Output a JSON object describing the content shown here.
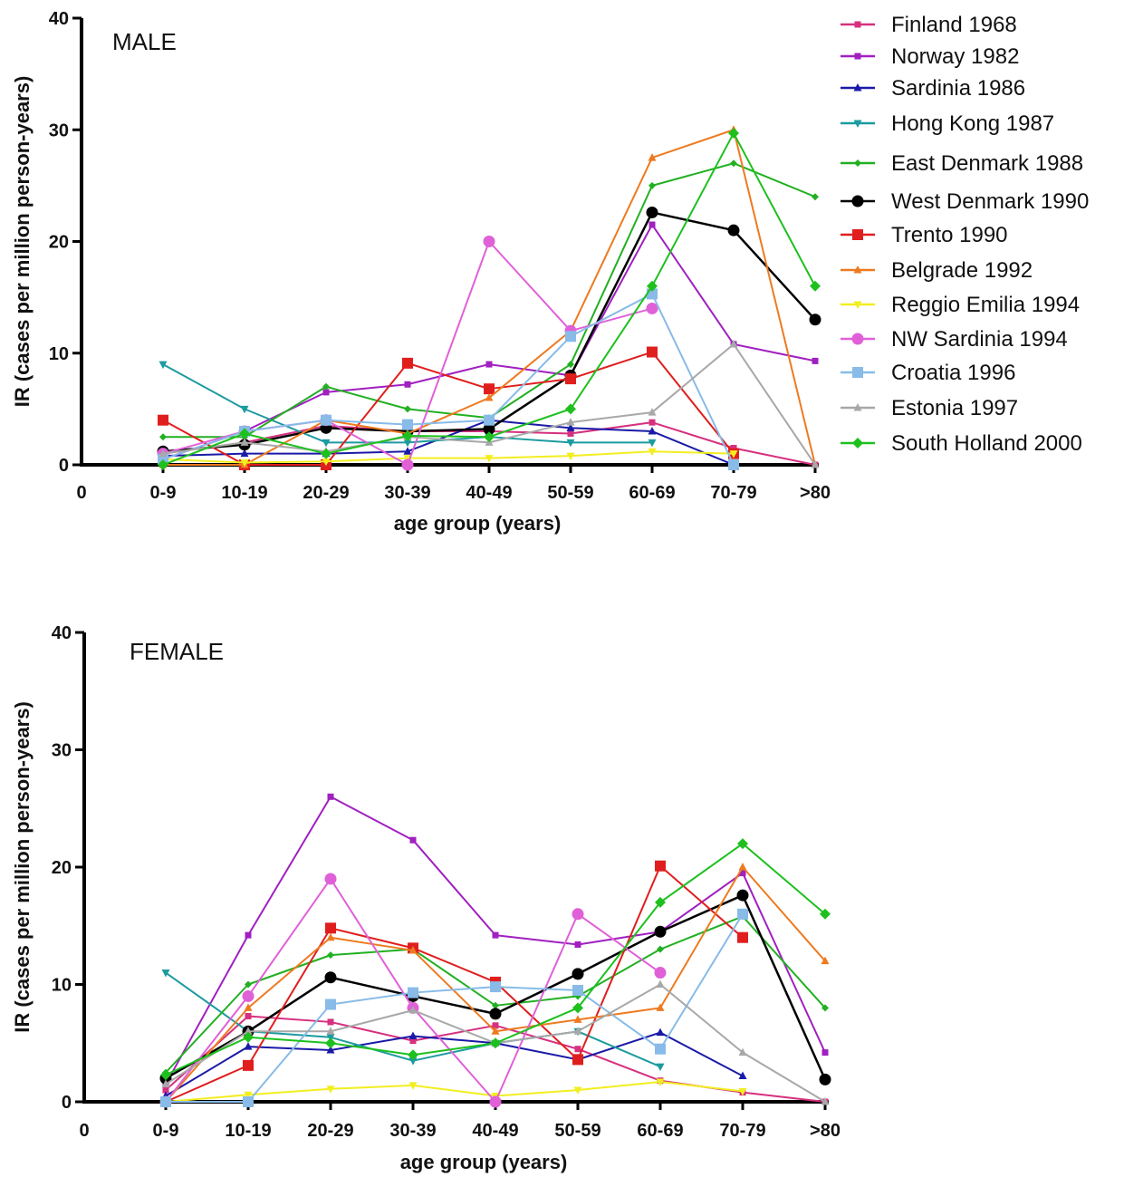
{
  "chart_data": [
    {
      "type": "line",
      "panel_label": "MALE",
      "categories": [
        "0-9",
        "10-19",
        "20-29",
        "30-39",
        "40-49",
        "50-59",
        "60-69",
        "70-79",
        ">80"
      ],
      "origin_label": "0",
      "xlabel": "age group (years)",
      "ylabel": "IR (cases per million person-years)",
      "ylim": [
        0,
        40
      ],
      "yticks": [
        0,
        10,
        20,
        30,
        40
      ],
      "grid": false,
      "legend": "right",
      "series": [
        {
          "name": "Finland 1968",
          "color": "#d6307e",
          "marker": "square-small",
          "values": [
            1.0,
            2.0,
            3.5,
            3.0,
            3.0,
            2.8,
            3.8,
            1.5,
            0
          ]
        },
        {
          "name": "Norway 1982",
          "color": "#a020c0",
          "marker": "square-small",
          "values": [
            0.5,
            3.0,
            6.5,
            7.2,
            9.0,
            8.0,
            21.5,
            10.8,
            9.3
          ]
        },
        {
          "name": "Sardinia 1986",
          "color": "#1a1aa8",
          "marker": "triangle",
          "values": [
            0.8,
            1.0,
            1.0,
            1.2,
            4.0,
            3.3,
            3.0,
            0,
            null
          ]
        },
        {
          "name": "Hong Kong 1987",
          "color": "#1c9ba0",
          "marker": "triangle-down",
          "values": [
            9.0,
            5.0,
            2.0,
            2.0,
            2.5,
            2.0,
            2.0,
            null,
            null
          ]
        },
        {
          "name": "East Denmark 1988",
          "color": "#22b022",
          "marker": "diamond-small",
          "values": [
            2.5,
            2.5,
            7.0,
            5.0,
            4.2,
            9.0,
            25.0,
            27.0,
            24.0
          ]
        },
        {
          "name": "West Denmark 1990",
          "color": "#000000",
          "marker": "circle",
          "values": [
            1.2,
            1.8,
            3.3,
            3.0,
            3.2,
            8.0,
            22.6,
            21.0,
            13.0
          ]
        },
        {
          "name": "Trento 1990",
          "color": "#e01e1e",
          "marker": "square",
          "values": [
            4.0,
            0,
            0,
            9.1,
            6.8,
            7.7,
            10.1,
            1.0,
            null
          ]
        },
        {
          "name": "Belgrade 1992",
          "color": "#ee7a20",
          "marker": "triangle",
          "values": [
            0,
            0,
            4.0,
            2.8,
            6.0,
            12.0,
            27.5,
            30.0,
            0
          ]
        },
        {
          "name": "Reggio Emilia 1994",
          "color": "#f2ee20",
          "marker": "triangle-down",
          "values": [
            0.5,
            0.2,
            0.3,
            0.6,
            0.6,
            0.8,
            1.2,
            1.0,
            null
          ]
        },
        {
          "name": "NW Sardinia 1994",
          "color": "#e060d8",
          "marker": "circle",
          "values": [
            1.0,
            3.0,
            4.0,
            0,
            20.0,
            12.0,
            14.0,
            null,
            null
          ]
        },
        {
          "name": "Croatia 1996",
          "color": "#88bbe8",
          "marker": "square",
          "values": [
            0.5,
            3.0,
            4.0,
            3.6,
            4.0,
            11.5,
            15.3,
            0,
            null
          ]
        },
        {
          "name": "Estonia 1997",
          "color": "#a8a8a8",
          "marker": "triangle",
          "values": [
            1.0,
            2.0,
            1.2,
            2.5,
            2.0,
            3.8,
            4.7,
            10.8,
            0
          ]
        },
        {
          "name": "South Holland 2000",
          "color": "#1ec01e",
          "marker": "diamond",
          "values": [
            0,
            2.8,
            1.0,
            2.6,
            2.5,
            5.0,
            16.0,
            29.7,
            16.0
          ]
        }
      ]
    },
    {
      "type": "line",
      "panel_label": "FEMALE",
      "categories": [
        "0-9",
        "10-19",
        "20-29",
        "30-39",
        "40-49",
        "50-59",
        "60-69",
        "70-79",
        ">80"
      ],
      "origin_label": "0",
      "xlabel": "age group (years)",
      "ylabel": "IR (cases per million person-years)",
      "ylim": [
        0,
        40
      ],
      "yticks": [
        0,
        10,
        20,
        30,
        40
      ],
      "grid": false,
      "series": [
        {
          "name": "Finland 1968",
          "color": "#d6307e",
          "marker": "square-small",
          "values": [
            1.0,
            7.3,
            6.8,
            5.2,
            6.5,
            4.5,
            1.8,
            0.8,
            0
          ]
        },
        {
          "name": "Norway 1982",
          "color": "#a020c0",
          "marker": "square-small",
          "values": [
            1.5,
            14.2,
            26.0,
            22.3,
            14.2,
            13.4,
            14.5,
            19.5,
            4.2
          ]
        },
        {
          "name": "Sardinia 1986",
          "color": "#1a1aa8",
          "marker": "triangle",
          "values": [
            0.5,
            4.7,
            4.4,
            5.6,
            5.0,
            3.6,
            5.9,
            2.2,
            null
          ]
        },
        {
          "name": "Hong Kong 1987",
          "color": "#1c9ba0",
          "marker": "triangle-down",
          "values": [
            11.0,
            6.0,
            5.5,
            3.5,
            5.0,
            6.0,
            3.0,
            null,
            null
          ]
        },
        {
          "name": "East Denmark 1988",
          "color": "#22b022",
          "marker": "diamond-small",
          "values": [
            2.5,
            10.0,
            12.5,
            13.0,
            8.2,
            9.0,
            13.0,
            15.8,
            8.0
          ]
        },
        {
          "name": "West Denmark 1990",
          "color": "#000000",
          "marker": "circle",
          "values": [
            2.0,
            6.0,
            10.6,
            9.0,
            7.5,
            10.9,
            14.5,
            17.6,
            1.9
          ]
        },
        {
          "name": "Trento 1990",
          "color": "#e01e1e",
          "marker": "square",
          "values": [
            0,
            3.1,
            14.8,
            13.1,
            10.2,
            3.6,
            20.1,
            14.0,
            null
          ]
        },
        {
          "name": "Belgrade 1992",
          "color": "#ee7a20",
          "marker": "triangle",
          "values": [
            0,
            8.0,
            14.0,
            12.9,
            6.0,
            7.0,
            8.0,
            20.0,
            12.0
          ]
        },
        {
          "name": "Reggio Emilia 1994",
          "color": "#f2ee20",
          "marker": "triangle-down",
          "values": [
            0,
            0.6,
            1.1,
            1.4,
            0.5,
            1.0,
            1.7,
            0.9,
            null
          ]
        },
        {
          "name": "NW Sardinia 1994",
          "color": "#e060d8",
          "marker": "circle",
          "values": [
            0,
            9.0,
            19.0,
            8.0,
            0,
            16.0,
            11.0,
            null,
            null
          ]
        },
        {
          "name": "Croatia 1996",
          "color": "#88bbe8",
          "marker": "square",
          "values": [
            0,
            0,
            8.3,
            9.3,
            9.8,
            9.5,
            4.5,
            16.0,
            null
          ]
        },
        {
          "name": "Estonia 1997",
          "color": "#a8a8a8",
          "marker": "triangle",
          "values": [
            1.5,
            6.0,
            6.0,
            7.8,
            5.0,
            6.0,
            10.0,
            4.2,
            0
          ]
        },
        {
          "name": "South Holland 2000",
          "color": "#1ec01e",
          "marker": "diamond",
          "values": [
            2.3,
            5.5,
            5.0,
            4.0,
            5.0,
            8.0,
            17.0,
            22.0,
            16.0
          ]
        }
      ]
    }
  ]
}
